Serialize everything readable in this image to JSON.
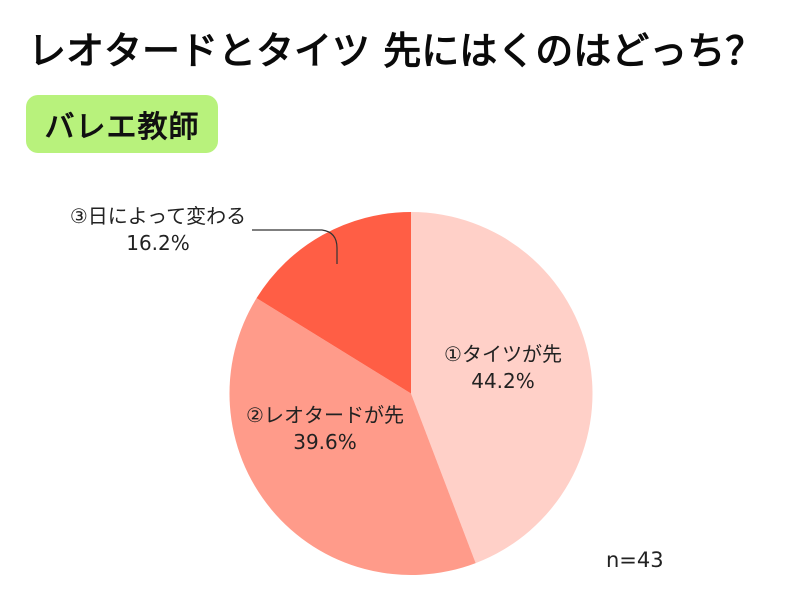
{
  "title": "レオタードとタイツ 先にはくのはどっち？",
  "badge": {
    "label": "バレエ教師",
    "color": "#b8f27c"
  },
  "sample_size": "n=43",
  "chart_data": {
    "type": "pie",
    "title": "レオタードとタイツ 先にはくのはどっち？",
    "subtitle": "バレエ教師",
    "categories": [
      "①タイツが先",
      "②レオタードが先",
      "③日によって変わる"
    ],
    "values": [
      44.2,
      39.6,
      16.2
    ],
    "value_labels": [
      "44.2%",
      "39.6%",
      "16.2%"
    ],
    "colors": [
      "#ffd0c8",
      "#ff9b8a",
      "#ff5e45"
    ],
    "start_angle": "12 o'clock, clockwise",
    "annotation": "n=43",
    "legend": "none (inline labels)"
  },
  "slices": [
    {
      "label": "①タイツが先",
      "value": "44.2%"
    },
    {
      "label": "②レオタードが先",
      "value": "39.6%"
    },
    {
      "label": "③日によって変わる",
      "value": "16.2%"
    }
  ]
}
